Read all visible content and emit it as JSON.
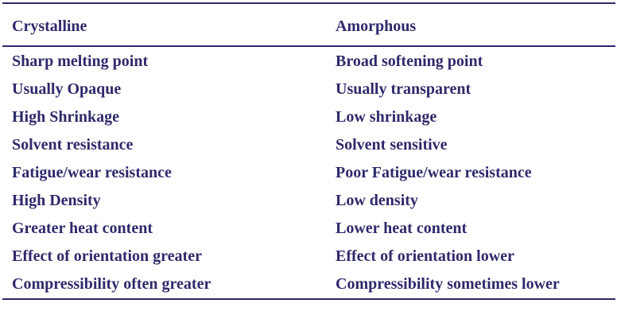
{
  "table": {
    "headers": {
      "left": "Crystalline",
      "right": "Amorphous"
    },
    "rows": [
      {
        "left": "Sharp melting point",
        "right": "Broad softening point"
      },
      {
        "left": "Usually Opaque",
        "right": "Usually transparent"
      },
      {
        "left": "High Shrinkage",
        "right": "Low shrinkage"
      },
      {
        "left": "Solvent resistance",
        "right": "Solvent sensitive"
      },
      {
        "left": "Fatigue/wear resistance",
        "right": "Poor Fatigue/wear resistance"
      },
      {
        "left": "High Density",
        "right": "Low density"
      },
      {
        "left": "Greater heat content",
        "right": "Lower heat content"
      },
      {
        "left": "Effect of orientation greater",
        "right": "Effect of orientation lower"
      },
      {
        "left": "Compressibility often greater",
        "right": "Compressibility sometimes lower"
      }
    ],
    "text_color": "#2e2a6b"
  }
}
